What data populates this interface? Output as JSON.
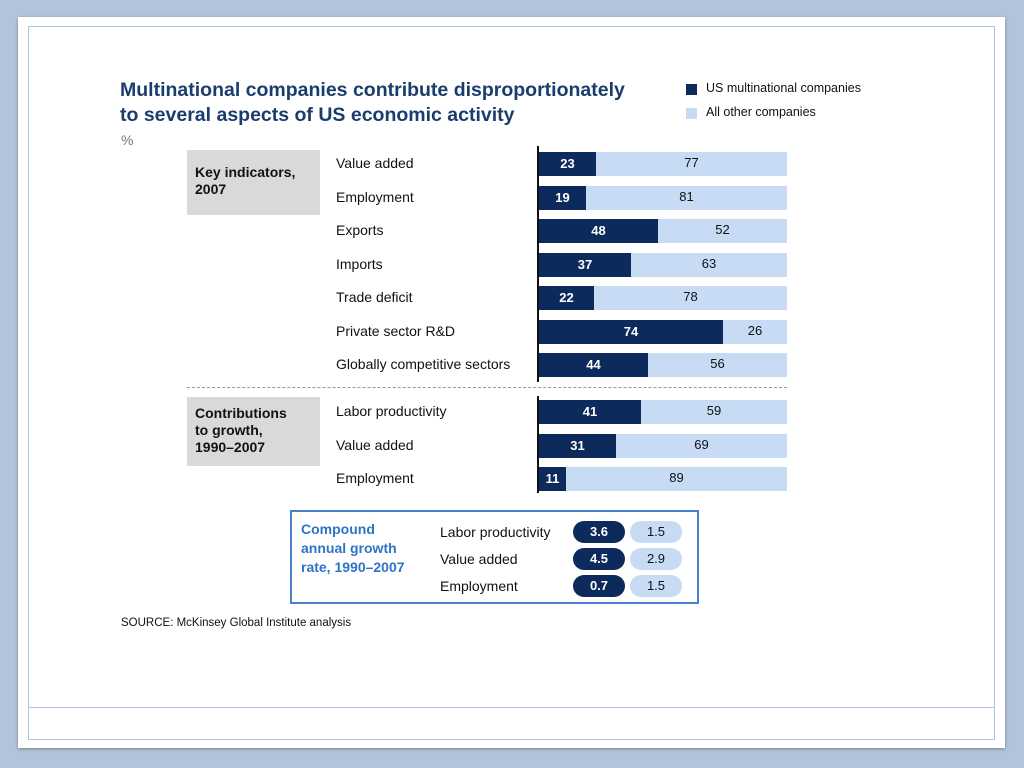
{
  "title_lines": [
    "Multinational companies contribute disproportionately",
    "to several aspects of US economic activity"
  ],
  "unit": "%",
  "legend": [
    {
      "label": "US multinational companies",
      "color": "#0d2a5c"
    },
    {
      "label": "All other companies",
      "color": "#c7dbf5"
    }
  ],
  "source": "SOURCE: McKinsey Global Institute analysis",
  "chart_data": {
    "type": "bar",
    "orientation": "horizontal",
    "stacked": true,
    "xlim": [
      0,
      100
    ],
    "unit": "%",
    "series_colors": {
      "us": "#0d2a5c",
      "other": "#c7dbf5"
    },
    "sections": [
      {
        "label": "Key indicators, 2007",
        "label_lines": [
          "Key indicators,",
          "2007"
        ],
        "rows": [
          {
            "label": "Value added",
            "us": 23,
            "other": 77
          },
          {
            "label": "Employment",
            "us": 19,
            "other": 81
          },
          {
            "label": "Exports",
            "us": 48,
            "other": 52
          },
          {
            "label": "Imports",
            "us": 37,
            "other": 63
          },
          {
            "label": "Trade deficit",
            "us": 22,
            "other": 78
          },
          {
            "label": "Private sector R&D",
            "us": 74,
            "other": 26
          },
          {
            "label": "Globally competitive sectors",
            "us": 44,
            "other": 56
          }
        ]
      },
      {
        "label": "Contributions to growth, 1990–2007",
        "label_lines": [
          "Contributions",
          "to growth,",
          "1990–2007"
        ],
        "rows": [
          {
            "label": "Labor productivity",
            "us": 41,
            "other": 59
          },
          {
            "label": "Value added",
            "us": 31,
            "other": 69
          },
          {
            "label": "Employment",
            "us": 11,
            "other": 89
          }
        ]
      }
    ],
    "growth_table": {
      "title": "Compound annual growth rate, 1990–2007",
      "title_lines": [
        "Compound",
        "annual growth",
        "rate, 1990–2007"
      ],
      "rows": [
        {
          "label": "Labor productivity",
          "us": 3.6,
          "other": 1.5
        },
        {
          "label": "Value added",
          "us": 4.5,
          "other": 2.9
        },
        {
          "label": "Employment",
          "us": 0.7,
          "other": 1.5
        }
      ]
    }
  }
}
